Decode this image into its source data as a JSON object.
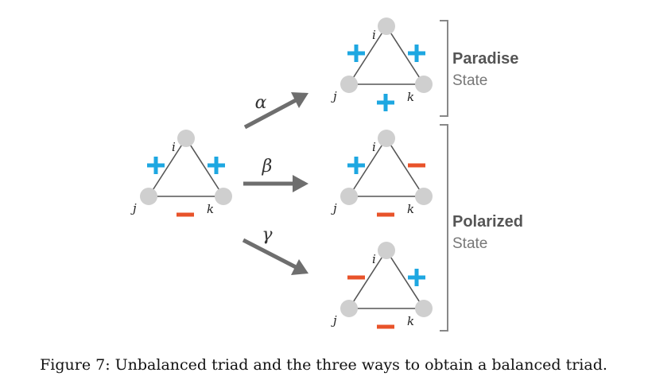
{
  "caption": "Figure 7: Unbalanced triad and the three ways to obtain a balanced triad.",
  "node_labels": {
    "i": "i",
    "j": "j",
    "k": "k"
  },
  "transitions": {
    "alpha": "α",
    "beta": "β",
    "gamma": "γ"
  },
  "states": {
    "paradise": {
      "title": "Paradise",
      "subtitle": "State"
    },
    "polarized": {
      "title": "Polarized",
      "subtitle": "State"
    }
  },
  "triads": {
    "unbalanced": {
      "ij": "+",
      "ik": "+",
      "jk": "-"
    },
    "alpha_result": {
      "ij": "+",
      "ik": "+",
      "jk": "+"
    },
    "beta_result": {
      "ij": "+",
      "ik": "-",
      "jk": "-"
    },
    "gamma_result": {
      "ij": "-",
      "ik": "+",
      "jk": "-"
    }
  },
  "colors": {
    "node": "#cfcfcf",
    "edge": "#555555",
    "positive": "#1ea7e1",
    "negative": "#e8532a",
    "arrow": "#6e6e6e",
    "bracket": "#888888"
  }
}
